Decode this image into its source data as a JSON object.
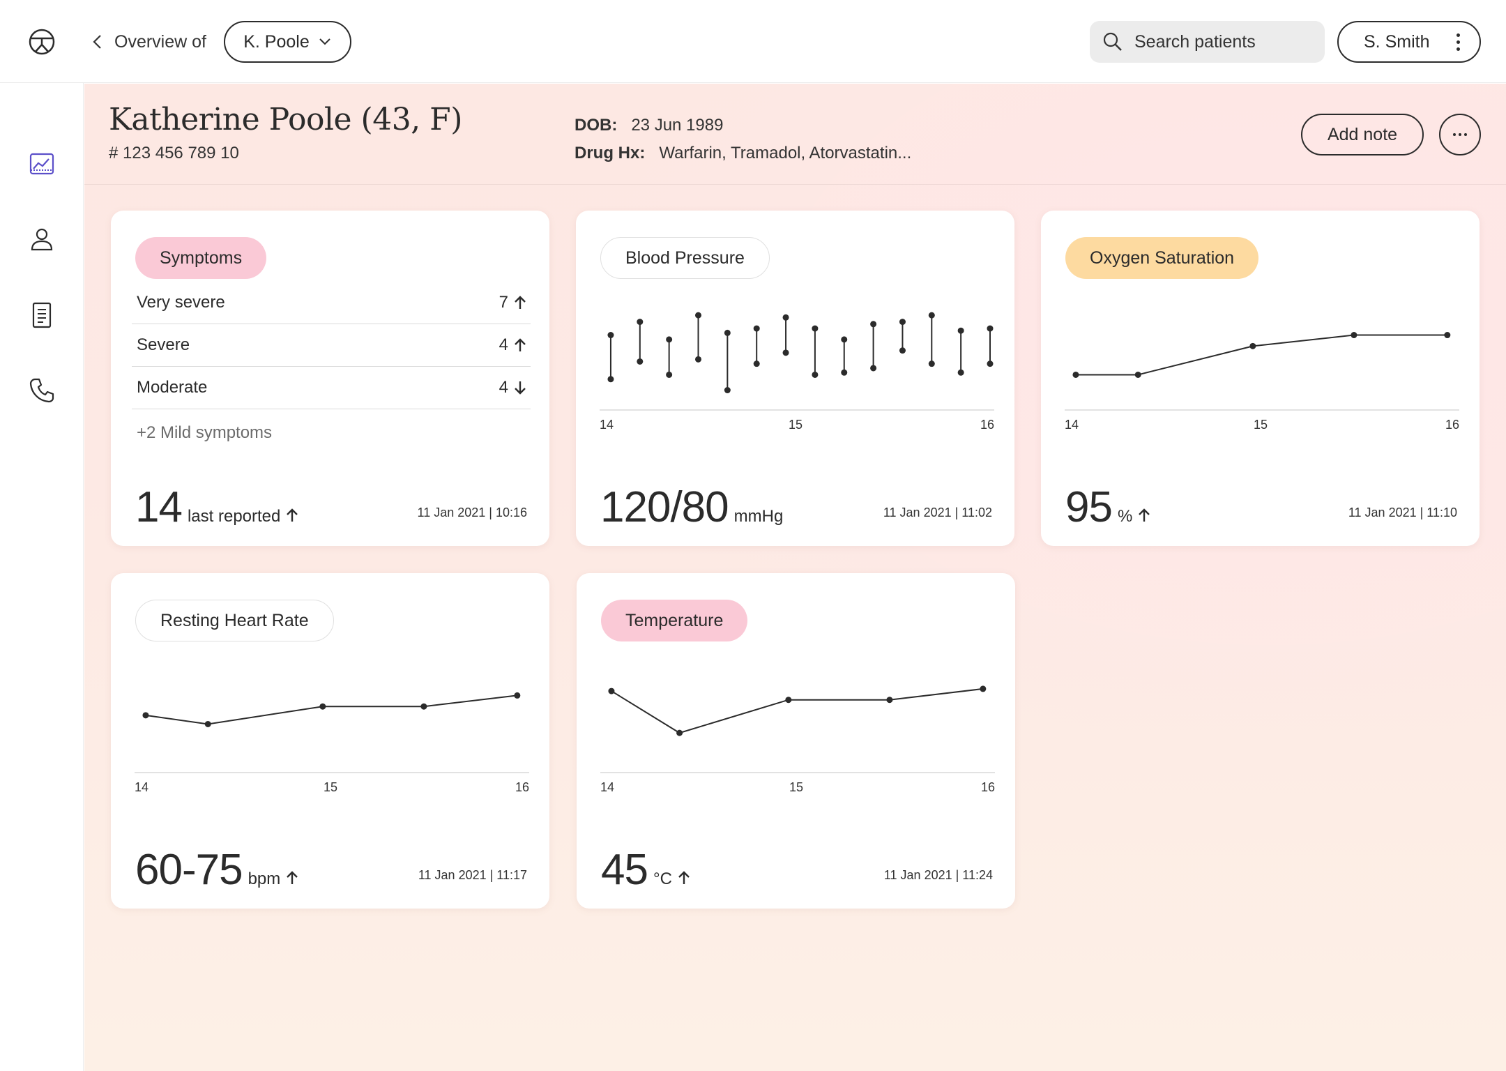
{
  "topbar": {
    "back_label": "Overview of",
    "patient_select": "K. Poole",
    "search_placeholder": "Search patients",
    "user": "S. Smith"
  },
  "sidebar": {
    "items": [
      {
        "name": "overview",
        "icon": "chart-line-icon",
        "active": true
      },
      {
        "name": "profile",
        "icon": "person-icon",
        "active": false
      },
      {
        "name": "notes",
        "icon": "document-icon",
        "active": false
      },
      {
        "name": "calls",
        "icon": "phone-icon",
        "active": false
      }
    ]
  },
  "patient": {
    "name": "Katherine Poole (43,  F)",
    "id": "# 123 456 789 10",
    "dob_label": "DOB:",
    "dob": "23 Jun 1989",
    "drug_label": "Drug Hx:",
    "drugs": "Warfarin, Tramadol, Atorvastatin...",
    "add_note": "Add note"
  },
  "colors": {
    "pink_pill": "#fac9d6",
    "yellow_pill": "#fddaa0",
    "active_icon": "#5b4fc9"
  },
  "cards": {
    "symptoms": {
      "title": "Symptoms",
      "rows": [
        {
          "label": "Very severe",
          "value": "7",
          "trend": "up"
        },
        {
          "label": "Severe",
          "value": "4",
          "trend": "up"
        },
        {
          "label": "Moderate",
          "value": "4",
          "trend": "down"
        }
      ],
      "mild": "+2 Mild symptoms",
      "big_value": "14",
      "unit": "last reported",
      "trend": "up",
      "timestamp": "11 Jan 2021 | 10:16"
    },
    "blood_pressure": {
      "title": "Blood Pressure",
      "big_value": "120/80",
      "unit": "mmHg",
      "timestamp": "11 Jan 2021 | 11:02"
    },
    "oxygen": {
      "title": "Oxygen Saturation",
      "big_value": "95",
      "unit": "%",
      "trend": "up",
      "timestamp": "11 Jan 2021 | 11:10"
    },
    "heart_rate": {
      "title": "Resting Heart Rate",
      "big_value": "60-75",
      "unit": "bpm",
      "trend": "up",
      "timestamp": "11 Jan 2021 | 11:17"
    },
    "temperature": {
      "title": "Temperature",
      "big_value": "45",
      "unit": "°C",
      "trend": "up",
      "timestamp": "11 Jan 2021 | 11:24"
    }
  },
  "chart_data": [
    {
      "id": "blood_pressure",
      "type": "range",
      "x_ticks": [
        "14",
        "15",
        "16"
      ],
      "xlim": [
        14,
        16
      ],
      "ylim": [
        0,
        100
      ],
      "x": [
        14.05,
        14.2,
        14.35,
        14.5,
        14.65,
        14.8,
        14.95,
        15.1,
        15.25,
        15.4,
        15.55,
        15.7,
        15.85,
        16.0
      ],
      "high": [
        68,
        80,
        64,
        86,
        70,
        74,
        84,
        74,
        64,
        78,
        80,
        86,
        72,
        74
      ],
      "low": [
        28,
        44,
        32,
        46,
        18,
        42,
        52,
        32,
        34,
        38,
        54,
        42,
        34,
        42
      ]
    },
    {
      "id": "oxygen",
      "type": "line",
      "x_ticks": [
        "14",
        "15",
        "16"
      ],
      "xlim": [
        14,
        16
      ],
      "ylim": [
        0,
        100
      ],
      "x": [
        14.05,
        14.37,
        14.96,
        15.48,
        15.96
      ],
      "y": [
        32,
        32,
        58,
        68,
        68
      ]
    },
    {
      "id": "heart_rate",
      "type": "line",
      "x_ticks": [
        "14",
        "15",
        "16"
      ],
      "xlim": [
        14,
        16
      ],
      "ylim": [
        0,
        100
      ],
      "x": [
        14.05,
        14.37,
        14.96,
        15.48,
        15.96
      ],
      "y": [
        52,
        44,
        60,
        60,
        70
      ]
    },
    {
      "id": "temperature",
      "type": "line",
      "x_ticks": [
        "14",
        "15",
        "16"
      ],
      "xlim": [
        14,
        16
      ],
      "ylim": [
        0,
        100
      ],
      "x": [
        14.05,
        14.4,
        14.96,
        15.48,
        15.96
      ],
      "y": [
        74,
        36,
        66,
        66,
        76
      ]
    }
  ]
}
